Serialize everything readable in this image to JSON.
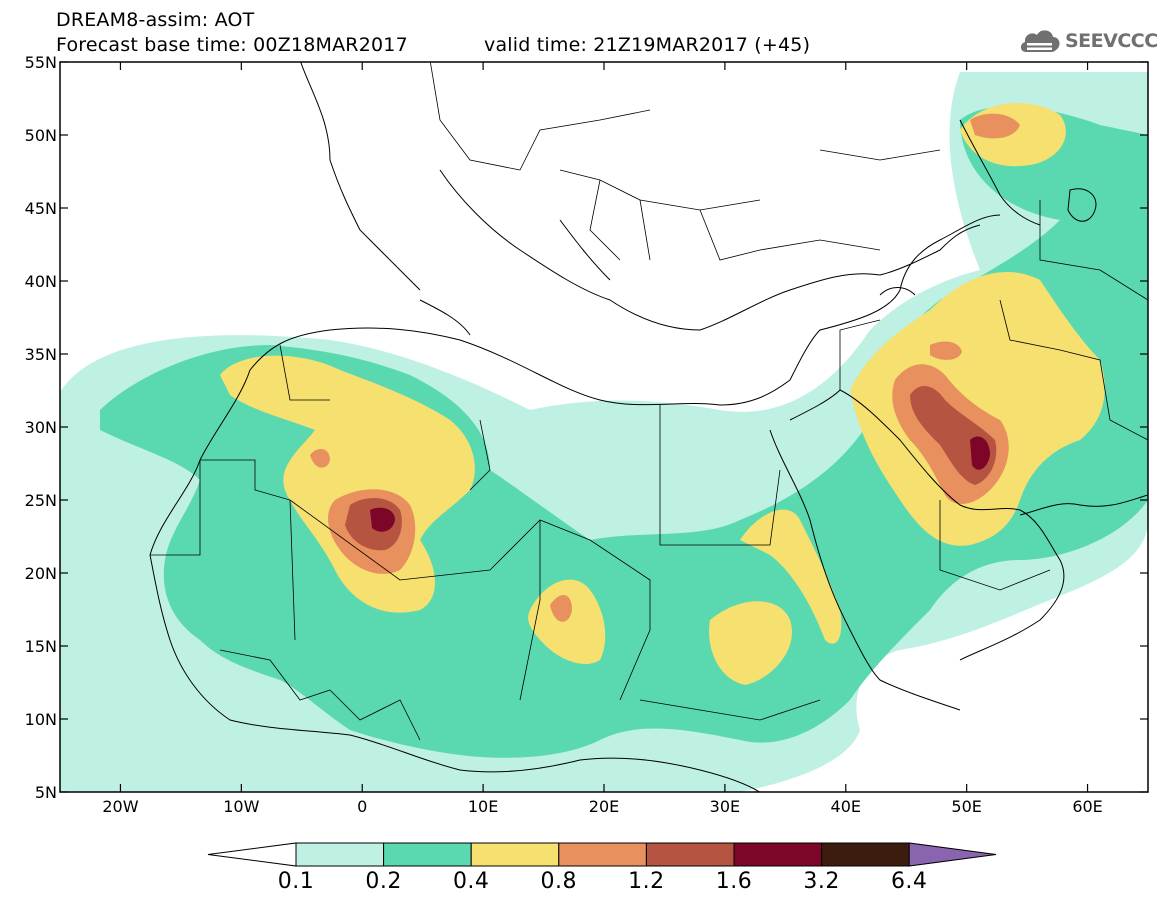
{
  "header": {
    "title": "DREAM8-assim: AOT",
    "base_time": "Forecast base time: 00Z18MAR2017",
    "valid_time": "valid time: 21Z19MAR2017 (+45)"
  },
  "logo": {
    "text": "SEEVCCC",
    "icon": "cloud-icon"
  },
  "map": {
    "lat_range": [
      5,
      55
    ],
    "lon_range": [
      -25,
      65
    ],
    "lat_labels": [
      "55N",
      "50N",
      "45N",
      "40N",
      "35N",
      "30N",
      "25N",
      "20N",
      "15N",
      "10N",
      "5N"
    ],
    "lon_labels": [
      "20W",
      "10W",
      "0",
      "10E",
      "20E",
      "30E",
      "40E",
      "50E",
      "60E"
    ],
    "boundary_color": "#000000"
  },
  "legend": {
    "labels": [
      "0.1",
      "0.2",
      "0.4",
      "0.8",
      "1.2",
      "1.6",
      "3.2",
      "6.4"
    ],
    "colors": [
      "#ffffff",
      "#bef0e4",
      "#5ad9b0",
      "#f5e070",
      "#e8905e",
      "#b55440",
      "#7d0628",
      "#3d1c10",
      "#8a64ae"
    ]
  }
}
